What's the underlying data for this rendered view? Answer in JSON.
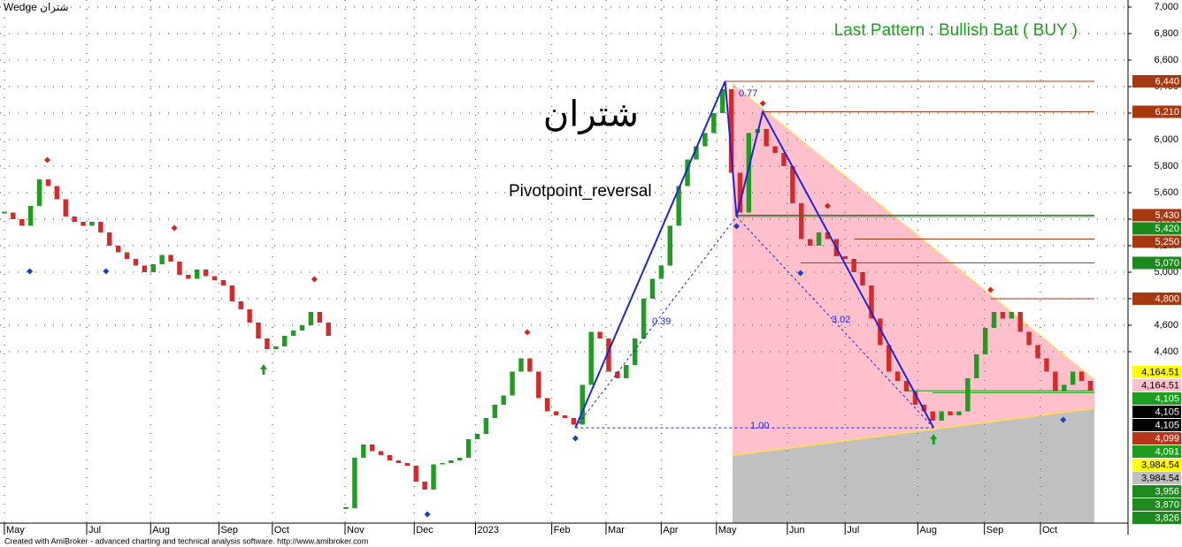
{
  "chart_data": {
    "type": "candlestick",
    "title": "شتران Wedge",
    "symbol_label": "شتران",
    "indicator_label": "Pivotpoint_reversal",
    "pattern_label": "Last Pattern : Bullish Bat ( BUY )",
    "footer": "Created with AmiBroker - advanced charting and technical analysis software. http://www.amibroker.com",
    "close": [
      5450,
      5400,
      5350,
      5500,
      5700,
      5650,
      5550,
      5420,
      5380,
      5350,
      5380,
      5300,
      5200,
      5150,
      5100,
      5050,
      5000,
      5060,
      5130,
      5080,
      4980,
      4950,
      5020,
      4970,
      4940,
      4900,
      4780,
      4720,
      4620,
      4500,
      4420,
      4440,
      4520,
      4560,
      4600,
      4700,
      4620,
      4520,
      null,
      3220,
      3600,
      3700,
      3650,
      3620,
      3580,
      3560,
      3540,
      3420,
      3360,
      3550,
      3560,
      3580,
      3600,
      3740,
      3780,
      3900,
      4000,
      4070,
      4250,
      4350,
      4250,
      4050,
      3950,
      3920,
      3900,
      3850,
      4150,
      4550,
      4500,
      4250,
      4200,
      4300,
      4500,
      4800,
      4950,
      5050,
      5350,
      5650,
      5850,
      5950,
      6050,
      6200,
      6380,
      5750,
      5450,
      6050,
      6080,
      5950,
      5900,
      5800,
      5520,
      5250,
      5200,
      5300,
      5250,
      5120,
      5100,
      5000,
      4900,
      4650,
      4450,
      4250,
      4180,
      4100,
      4000,
      3950,
      3880,
      3950,
      3920,
      3950,
      4200,
      4380,
      4580,
      4700,
      4650,
      4700,
      4550,
      4450,
      4350,
      4250,
      4100,
      4150,
      4250,
      4180,
      4105
    ],
    "up_color": "#1e9e1e",
    "down_color": "#d42a2a",
    "xlim": [
      -0.5,
      128.3
    ],
    "xticks": [
      {
        "value": 0,
        "label": "May"
      },
      {
        "value": 9.4,
        "label": "Jul"
      },
      {
        "value": 16.7,
        "label": "Aug"
      },
      {
        "value": 24.5,
        "label": "Sep"
      },
      {
        "value": 30.6,
        "label": "Oct"
      },
      {
        "value": 38.9,
        "label": "Nov"
      },
      {
        "value": 46.8,
        "label": "Dec"
      },
      {
        "value": 53.8,
        "label": "2023"
      },
      {
        "value": 62.5,
        "label": "Feb"
      },
      {
        "value": 68.7,
        "label": "Mar"
      },
      {
        "value": 75,
        "label": "Apr"
      },
      {
        "value": 81.3,
        "label": "May"
      },
      {
        "value": 89.4,
        "label": "Jun"
      },
      {
        "value": 96,
        "label": "Jul"
      },
      {
        "value": 104.3,
        "label": "Aug"
      },
      {
        "value": 111.9,
        "label": "Sep"
      },
      {
        "value": 118.3,
        "label": "Oct"
      }
    ],
    "ylim": [
      3100,
      7000
    ],
    "yticks": [
      {
        "value": 4400,
        "label": "4,400"
      },
      {
        "value": 4600,
        "label": "4,600"
      },
      {
        "value": 4800,
        "label": "4,800"
      },
      {
        "value": 5000,
        "label": "5,000"
      },
      {
        "value": 5200,
        "label": "5,200"
      },
      {
        "value": 5400,
        "label": "5,400"
      },
      {
        "value": 5600,
        "label": "5,600"
      },
      {
        "value": 5800,
        "label": "5,800"
      },
      {
        "value": 6000,
        "label": "6,000"
      },
      {
        "value": 6200,
        "label": "6,200"
      },
      {
        "value": 6400,
        "label": "6,400"
      },
      {
        "value": 6600,
        "label": "6,600"
      },
      {
        "value": 6800,
        "label": "6,800"
      },
      {
        "value": 7000,
        "label": "7,000"
      }
    ],
    "grid": true,
    "pattern": {
      "x": [
        65.2,
        82.3,
        83.6,
        86.6,
        106.1
      ],
      "values": [
        3826,
        6440,
        5420,
        6210,
        3826
      ],
      "color": "#2222dd",
      "ratio_labels": [
        "0.77",
        "0.39",
        "3.02",
        "1.00"
      ]
    },
    "pivot_highs": {
      "x": [
        4.9,
        19.4,
        35.4,
        59.7,
        86.6,
        94,
        112.6
      ],
      "values": [
        5847,
        5333,
        4947,
        4547,
        6273,
        5500,
        4867
      ],
      "color": "#e02020"
    },
    "pivot_lows": {
      "x": [
        2.9,
        11.6,
        48.3,
        65.2,
        83.6,
        90.9,
        120.9
      ],
      "values": [
        5007,
        5007,
        3173,
        3747,
        5347,
        4993,
        3887
      ],
      "color": "#1a3fcc"
    },
    "buy_arrows": {
      "x": [
        29.6,
        106.1
      ],
      "values": [
        4267,
        3740
      ],
      "color": "#1e9e1e"
    },
    "levels": [
      {
        "value": 6440,
        "label": "6,440",
        "color": "#a8380f",
        "x": 82.3
      },
      {
        "value": 6210,
        "label": "6,210",
        "color": "#a8380f",
        "x": 86.6
      },
      {
        "value": 5430,
        "label": "5,430",
        "color": "#a8380f",
        "x": 83.6
      },
      {
        "value": 5420,
        "label": "5,420",
        "color": "#1e8a1e",
        "x": 83.6
      },
      {
        "value": 5250,
        "label": "5,250",
        "color": "#a8380f",
        "x": 97
      },
      {
        "value": 5070,
        "label": "5,070",
        "color": "#1e8a1e",
        "x": 90.9
      },
      {
        "value": 4800,
        "label": "4,800",
        "color": "#a8380f",
        "x": 112.6
      },
      {
        "value": 4164.51,
        "label": "4,164.51",
        "color": "#ffff00"
      },
      {
        "value": 4164.51,
        "label": "4,164.51",
        "color": "#ffc0cb"
      },
      {
        "value": 4105,
        "label": "4,105",
        "color": "#1e9e1e",
        "x": 103
      },
      {
        "value": 4105,
        "label": "4,105",
        "color": "#000000"
      },
      {
        "value": 4105,
        "label": "4,105",
        "color": "#000000"
      },
      {
        "value": 4099,
        "label": "4,099",
        "color": "#b8341a"
      },
      {
        "value": 4091,
        "label": "4,091",
        "color": "#1e9e1e",
        "x": 106
      },
      {
        "value": 3984.54,
        "label": "3,984.54",
        "color": "#ffff00"
      },
      {
        "value": 3984.54,
        "label": "3,984.54",
        "color": "#c0c0c0"
      },
      {
        "value": 3956,
        "label": "3,956",
        "color": "#1e8a1e"
      },
      {
        "value": 3870,
        "label": "3,870",
        "color": "#1e8a1e"
      },
      {
        "value": 3826,
        "label": "3,826",
        "color": "#1e8a1e"
      }
    ]
  }
}
